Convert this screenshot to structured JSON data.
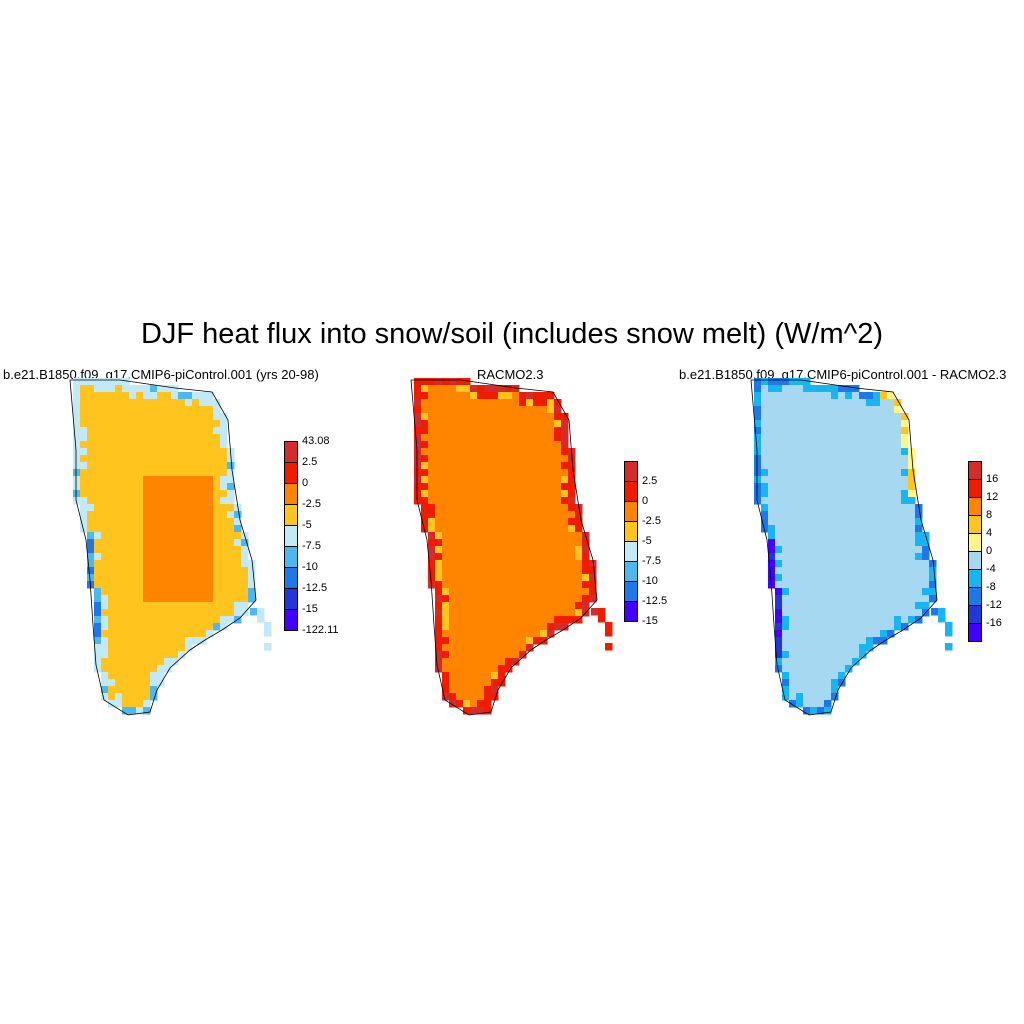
{
  "figure": {
    "title": "DJF heat flux into snow/soil (includes snow melt) (W/m^2)"
  },
  "panels": [
    {
      "title": "b.e21.B1850.f09_g17.CMIP6-piControl.001 (yrs 20-98)",
      "colorbar": {
        "colors": [
          "#d62b2b",
          "#ef1c00",
          "#ff8400",
          "#ffc51e",
          "#c2e9f7",
          "#4eb8ee",
          "#1f78e8",
          "#2337d8",
          "#4400ff"
        ],
        "labels": [
          "43.08",
          "2.5",
          "0",
          "-2.5",
          "-5",
          "-7.5",
          "-10",
          "-12.5",
          "-15",
          "-122.11"
        ]
      }
    },
    {
      "title": "RACMO2.3",
      "colorbar": {
        "colors": [
          "#d62b2b",
          "#ef1c00",
          "#ff8400",
          "#ffc51e",
          "#c2e9f7",
          "#4eb8ee",
          "#1f78e8",
          "#4400ff"
        ],
        "labels": [
          "2.5",
          "0",
          "-2.5",
          "-5",
          "-7.5",
          "-10",
          "-12.5",
          "-15"
        ]
      }
    },
    {
      "title": "b.e21.B1850.f09_g17.CMIP6-piControl.001 - RACMO2.3",
      "colorbar": {
        "colors": [
          "#d62b2b",
          "#ef1c00",
          "#ff8400",
          "#ffc51e",
          "#fff68a",
          "#a6d8f2",
          "#19b5f0",
          "#1f78e8",
          "#2337d8",
          "#4400ff"
        ],
        "labels": [
          "16",
          "12",
          "8",
          "4",
          "0",
          "-4",
          "-8",
          "-12",
          "-16"
        ]
      }
    }
  ]
}
